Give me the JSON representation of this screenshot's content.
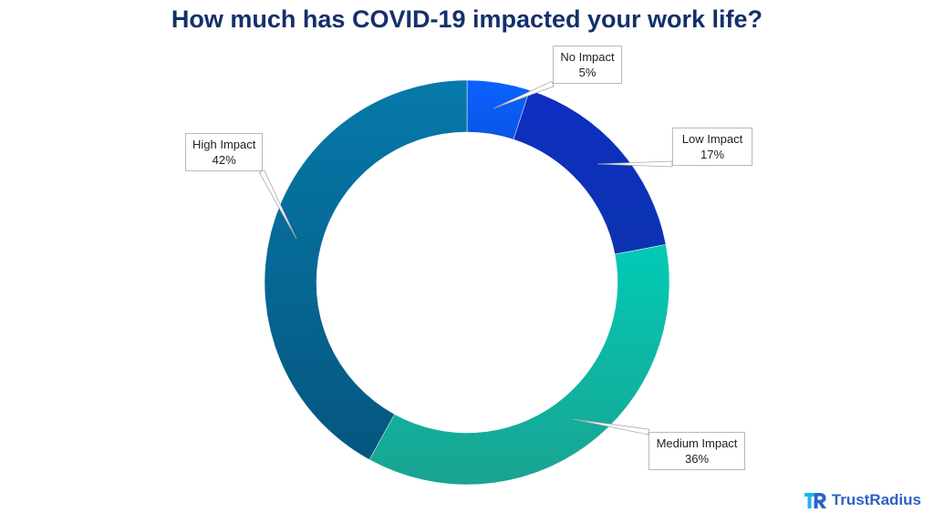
{
  "chart_data": {
    "type": "pie",
    "title": "How much has COVID-19 impacted your work life?",
    "donut": true,
    "slices": [
      {
        "label": "No Impact",
        "value": 5,
        "value_label": "5%",
        "color": "#0a5ef5"
      },
      {
        "label": "Low Impact",
        "value": 17,
        "value_label": "17%",
        "color": "#0e2fbf"
      },
      {
        "label": "Medium Impact",
        "value": 36,
        "value_label": "36%",
        "color": "#10c4ad"
      },
      {
        "label": "High Impact",
        "value": 42,
        "value_label": "42%",
        "color": "#066a9a"
      }
    ]
  },
  "branding": {
    "name": "TrustRadius",
    "color": "#2a62c8"
  }
}
